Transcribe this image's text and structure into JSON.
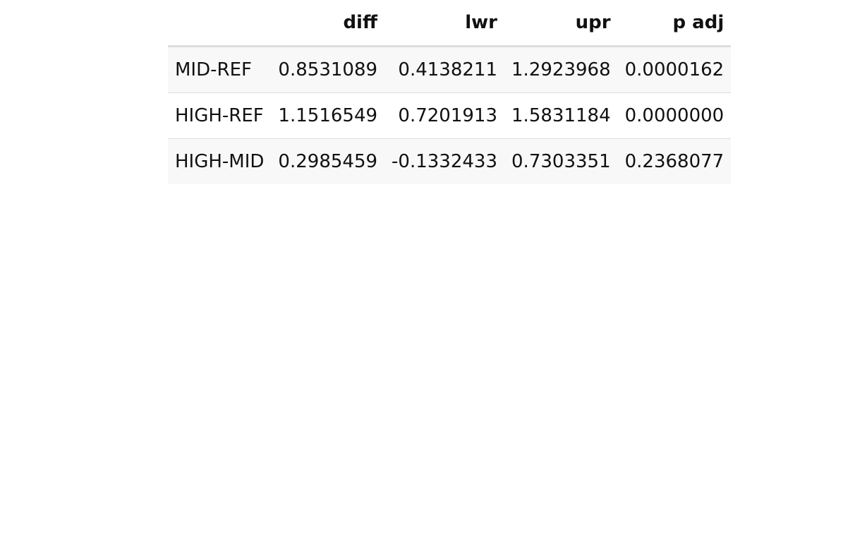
{
  "table": {
    "columns": [
      "",
      "diff",
      "lwr",
      "upr",
      "p adj"
    ],
    "rows": [
      {
        "label": "MID-REF",
        "cells": [
          "0.8531089",
          "0.4138211",
          "1.2923968",
          "0.0000162"
        ]
      },
      {
        "label": "HIGH-REF",
        "cells": [
          "1.1516549",
          "0.7201913",
          "1.5831184",
          "0.0000000"
        ]
      },
      {
        "label": "HIGH-MID",
        "cells": [
          "0.2985459",
          "-0.1332433",
          "0.7303351",
          "0.2368077"
        ]
      }
    ]
  }
}
